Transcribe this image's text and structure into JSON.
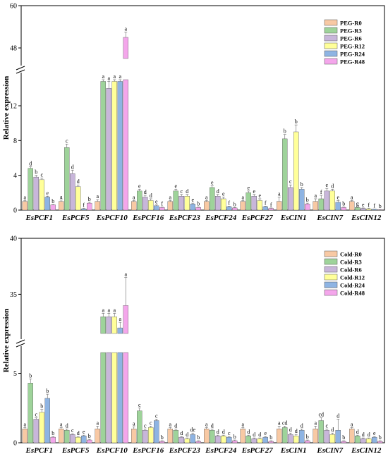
{
  "chart_data": [
    {
      "type": "bar",
      "panel": "top",
      "ylabel": "Relative expression",
      "axis_segments": [
        {
          "ymin": 0,
          "ymax": 15,
          "ticks": [
            0,
            4,
            8,
            12
          ]
        },
        {
          "ymin": 45,
          "ymax": 60,
          "ticks": [
            48,
            60
          ]
        }
      ],
      "categories": [
        "EsPCF1",
        "EsPCF5",
        "EsPCF10",
        "EsPCF16",
        "EsPCF23",
        "EsPCF24",
        "EsPCF27",
        "EsCIN1",
        "EsCIN7",
        "EsCIN12"
      ],
      "series": [
        {
          "name": "PEG-R0",
          "color": "#F8C9A4",
          "values": [
            1.0,
            1.0,
            1.0,
            1.0,
            1.0,
            1.0,
            1.0,
            1.0,
            1.0,
            1.0
          ],
          "errors": [
            0.1,
            0.15,
            0.2,
            0.1,
            0.1,
            0.1,
            0.1,
            0.5,
            0.3,
            0.1
          ],
          "letters": [
            "a",
            "a",
            "a",
            "a",
            "a",
            "a",
            "a",
            "a",
            "a",
            "a"
          ]
        },
        {
          "name": "PEG-R3",
          "color": "#9ED39A",
          "values": [
            4.8,
            7.2,
            14.8,
            2.2,
            2.2,
            2.6,
            2.0,
            8.2,
            1.3,
            0.3
          ],
          "errors": [
            0.2,
            0.4,
            0.3,
            0.2,
            0.2,
            0.2,
            0.2,
            0.5,
            0.4,
            0.05
          ],
          "letters": [
            "d",
            "c",
            "a",
            "e",
            "e",
            "e",
            "e",
            "b",
            "f",
            "g"
          ]
        },
        {
          "name": "PEG-R6",
          "color": "#C8B6DA",
          "values": [
            3.8,
            4.2,
            14.0,
            1.5,
            1.6,
            1.6,
            1.6,
            2.6,
            2.2,
            0.2
          ],
          "errors": [
            0.2,
            0.4,
            0.8,
            0.2,
            0.2,
            0.2,
            0.2,
            0.3,
            0.3,
            0.05
          ],
          "letters": [
            "b",
            "d",
            "a",
            "d",
            "c",
            "d",
            "e",
            "c",
            "e",
            "e"
          ]
        },
        {
          "name": "PEG-R12",
          "color": "#FFFF99",
          "values": [
            3.5,
            2.7,
            14.8,
            1.1,
            1.6,
            1.3,
            1.1,
            9.0,
            2.2,
            0.15
          ],
          "errors": [
            0.2,
            0.2,
            0.3,
            0.2,
            0.2,
            0.2,
            0.2,
            0.8,
            0.2,
            0.05
          ],
          "letters": [
            "c",
            "d",
            "a",
            "d",
            "d",
            "e",
            "e",
            "b",
            "d",
            "f"
          ]
        },
        {
          "name": "PEG-R24",
          "color": "#8EB4E3",
          "values": [
            1.5,
            0.15,
            14.8,
            0.5,
            0.7,
            0.4,
            0.4,
            2.4,
            0.9,
            0.1
          ],
          "errors": [
            0.1,
            0.05,
            0.3,
            0.1,
            0.1,
            0.05,
            0.05,
            0.2,
            0.2,
            0.02
          ],
          "letters": [
            "e",
            "f",
            "a",
            "e",
            "e",
            "f",
            "f",
            "b",
            "e",
            "f"
          ]
        },
        {
          "name": "PEG-R48",
          "color": "#F4A6EB",
          "values": [
            0.6,
            0.8,
            51.0,
            0.3,
            0.3,
            0.25,
            0.2,
            0.7,
            0.3,
            0.05
          ],
          "errors": [
            0.05,
            0.1,
            1.5,
            0.05,
            0.05,
            0.05,
            0.05,
            0.1,
            0.05,
            0.02
          ],
          "letters": [
            "b",
            "b",
            "a",
            "f",
            "b",
            "b",
            "f",
            "b",
            "b",
            "b"
          ]
        }
      ]
    },
    {
      "type": "bar",
      "panel": "bottom",
      "ylabel": "Relative expression",
      "axis_segments": [
        {
          "ymin": 0,
          "ymax": 6.5,
          "ticks": [
            0,
            5
          ]
        },
        {
          "ymin": 31.5,
          "ymax": 40,
          "ticks": [
            35,
            40
          ]
        }
      ],
      "categories": [
        "EsPCF1",
        "EsPCF5",
        "EsPCF10",
        "EsPCF16",
        "EsPCF23",
        "EsPCF24",
        "EsPCF27",
        "EsCIN1",
        "EsCIN7",
        "EsCIN12"
      ],
      "series": [
        {
          "name": "Cold-R0",
          "color": "#F8C9A4",
          "values": [
            1.0,
            1.0,
            1.0,
            1.0,
            1.0,
            1.0,
            1.0,
            1.0,
            1.0,
            1.0
          ],
          "errors": [
            0.1,
            0.1,
            0.2,
            0.15,
            0.1,
            0.1,
            0.1,
            0.2,
            0.2,
            0.1
          ],
          "letters": [
            "a",
            "a",
            "a",
            "a",
            "a",
            "a",
            "a",
            "a",
            "a",
            "a"
          ]
        },
        {
          "name": "Cold-R3",
          "color": "#9ED39A",
          "values": [
            4.3,
            0.9,
            33.0,
            2.3,
            0.9,
            0.9,
            0.5,
            1.1,
            1.6,
            0.5
          ],
          "errors": [
            0.3,
            0.1,
            0.3,
            0.2,
            0.1,
            0.1,
            0.05,
            0.1,
            0.2,
            0.05
          ],
          "letters": [
            "b",
            "d",
            "a",
            "c",
            "d",
            "d",
            "d",
            "cd",
            "cd",
            "d"
          ]
        },
        {
          "name": "Cold-R6",
          "color": "#C8B6DA",
          "values": [
            1.7,
            0.6,
            33.0,
            0.9,
            0.4,
            0.5,
            0.3,
            0.6,
            0.9,
            0.3
          ],
          "errors": [
            0.1,
            0.05,
            0.3,
            0.1,
            0.05,
            0.05,
            0.05,
            0.1,
            0.1,
            0.05
          ],
          "letters": [
            "c",
            "c",
            "a",
            "c",
            "d",
            "d",
            "d",
            "d",
            "c",
            "d"
          ]
        },
        {
          "name": "Cold-R12",
          "color": "#FFFF99",
          "values": [
            2.2,
            0.4,
            33.0,
            1.1,
            0.3,
            0.5,
            0.3,
            0.5,
            0.6,
            0.3
          ],
          "errors": [
            0.2,
            0.05,
            0.3,
            0.1,
            0.05,
            0.05,
            0.05,
            0.1,
            0.1,
            0.05
          ],
          "letters": [
            "b",
            "d",
            "a",
            "c",
            "d",
            "d",
            "d",
            "d",
            "d",
            "d"
          ]
        },
        {
          "name": "Cold-R24",
          "color": "#8EB4E3",
          "values": [
            3.2,
            0.5,
            32.0,
            1.6,
            0.6,
            0.4,
            0.4,
            0.9,
            0.9,
            0.4
          ],
          "errors": [
            0.3,
            0.05,
            0.5,
            0.1,
            0.1,
            0.05,
            0.05,
            0.1,
            0.8,
            0.05
          ],
          "letters": [
            "b",
            "e",
            "a",
            "c",
            "de",
            "c",
            "e",
            "d",
            "d",
            "e"
          ]
        },
        {
          "name": "Cold-R48",
          "color": "#F4A6EB",
          "values": [
            0.4,
            0.2,
            34.0,
            0.1,
            0.1,
            0.15,
            0.1,
            0.15,
            0.1,
            0.1
          ],
          "errors": [
            0.05,
            0.05,
            2.5,
            0.05,
            0.05,
            0.05,
            0.05,
            0.05,
            0.05,
            0.05
          ],
          "letters": [
            "b",
            "b",
            "a",
            "b",
            "b",
            "b",
            "b",
            "b",
            "b",
            "b"
          ]
        }
      ]
    }
  ]
}
